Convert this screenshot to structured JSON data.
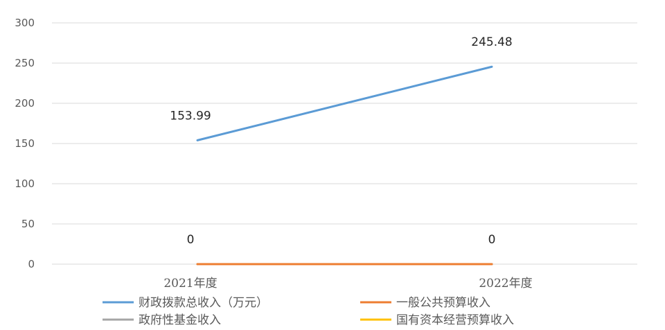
{
  "chart_data": {
    "type": "line",
    "categories": [
      "2021年度",
      "2022年度"
    ],
    "series": [
      {
        "name": "财政拨款总收入（万元）",
        "values": [
          153.99,
          245.48
        ],
        "color": "#5b9bd5",
        "labels": [
          "153.99",
          "245.48"
        ]
      },
      {
        "name": "一般公共预算收入",
        "values": [
          0,
          0
        ],
        "color": "#ed7d31",
        "labels": [
          "0",
          "0"
        ]
      },
      {
        "name": "政府性基金收入",
        "values": [
          0,
          0
        ],
        "color": "#a5a5a5",
        "labels": []
      },
      {
        "name": "国有资本经营预算收入",
        "values": [
          0,
          0
        ],
        "color": "#ffc000",
        "labels": []
      }
    ],
    "ylim": [
      0,
      300
    ],
    "yticks": [
      "0",
      "50",
      "100",
      "150",
      "200",
      "250",
      "300"
    ],
    "grid": true,
    "legend": "bottom",
    "title": "",
    "xlabel": "",
    "ylabel": ""
  }
}
